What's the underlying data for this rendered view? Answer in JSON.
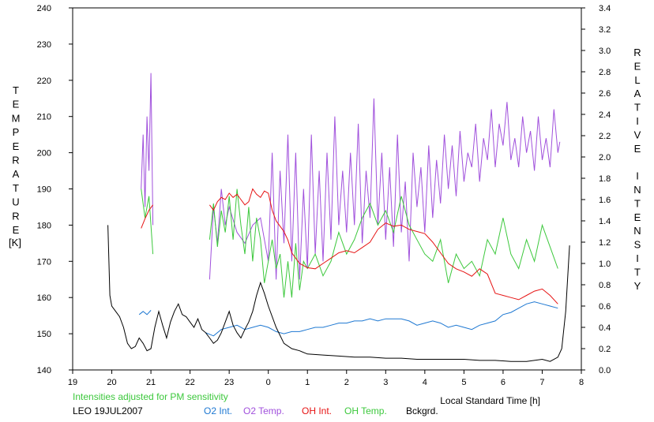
{
  "chart_data": {
    "type": "line",
    "xlabel": "Local Standard Time [h]",
    "ylabel_left": "TEMPERATURE",
    "ylabel_left_unit": "[K]",
    "ylabel_right": "RELATIVE INTENSITY",
    "note": "Intensities adjusted for PM sensitivity",
    "station_date": "LEO 19JUL2007",
    "x_ticks": [
      "19",
      "20",
      "21",
      "22",
      "23",
      "0",
      "1",
      "2",
      "3",
      "4",
      "5",
      "6",
      "7",
      "8"
    ],
    "y_left_ticks": [
      "140",
      "150",
      "160",
      "170",
      "180",
      "190",
      "200",
      "210",
      "220",
      "230",
      "240"
    ],
    "y_right_ticks": [
      "0.0",
      "0.2",
      "0.4",
      "0.6",
      "0.8",
      "1.0",
      "1.2",
      "1.4",
      "1.6",
      "1.8",
      "2.0",
      "2.2",
      "2.4",
      "2.6",
      "2.8",
      "3.0",
      "3.2",
      "3.4"
    ],
    "xlim": [
      19,
      32
    ],
    "ylim_left": [
      140,
      240
    ],
    "ylim_right": [
      0,
      3.4
    ],
    "colors": {
      "o2_int": "#1e78d2",
      "o2_temp": "#a050dc",
      "oh_int": "#e61414",
      "oh_temp": "#3cc83c",
      "bckgrd": "#000000",
      "note": "#3cc83c"
    },
    "series": [
      {
        "name": "O2 Int.",
        "axis": "right",
        "x": [
          20.7,
          20.8,
          20.9,
          21.0,
          22.4,
          22.6,
          22.8,
          23.0,
          23.2,
          23.4,
          23.6,
          23.8,
          24.0,
          24.2,
          24.4,
          24.6,
          24.8,
          25.0,
          25.2,
          25.4,
          25.6,
          25.8,
          26.0,
          26.2,
          26.4,
          26.6,
          26.8,
          27.0,
          27.2,
          27.4,
          27.6,
          27.8,
          28.0,
          28.2,
          28.4,
          28.6,
          28.8,
          29.0,
          29.2,
          29.4,
          29.6,
          29.8,
          30.0,
          30.2,
          30.4,
          30.6,
          30.8,
          31.0,
          31.2,
          31.4
        ],
        "y": [
          0.52,
          0.55,
          0.52,
          0.56,
          0.35,
          0.32,
          0.38,
          0.4,
          0.42,
          0.38,
          0.4,
          0.42,
          0.4,
          0.36,
          0.34,
          0.36,
          0.36,
          0.38,
          0.4,
          0.4,
          0.42,
          0.44,
          0.44,
          0.46,
          0.46,
          0.48,
          0.46,
          0.48,
          0.48,
          0.48,
          0.46,
          0.42,
          0.44,
          0.46,
          0.44,
          0.4,
          0.42,
          0.4,
          0.38,
          0.42,
          0.44,
          0.46,
          0.52,
          0.54,
          0.58,
          0.62,
          0.64,
          0.62,
          0.6,
          0.58
        ]
      },
      {
        "name": "O2 Temp.",
        "axis": "left",
        "x": [
          20.75,
          20.8,
          20.85,
          20.9,
          20.95,
          21.0,
          21.05,
          22.5,
          22.6,
          22.7,
          22.8,
          22.9,
          23.0,
          23.2,
          23.4,
          23.6,
          23.8,
          24.0,
          24.1,
          24.2,
          24.3,
          24.4,
          24.5,
          24.6,
          24.7,
          24.8,
          24.9,
          25.0,
          25.1,
          25.2,
          25.3,
          25.4,
          25.5,
          25.6,
          25.7,
          25.8,
          25.9,
          26.0,
          26.1,
          26.2,
          26.3,
          26.4,
          26.5,
          26.6,
          26.7,
          26.8,
          26.9,
          27.0,
          27.1,
          27.2,
          27.3,
          27.4,
          27.5,
          27.6,
          27.7,
          27.8,
          27.9,
          28.0,
          28.1,
          28.2,
          28.3,
          28.4,
          28.5,
          28.6,
          28.7,
          28.8,
          28.9,
          29.0,
          29.1,
          29.2,
          29.3,
          29.4,
          29.5,
          29.6,
          29.7,
          29.8,
          29.9,
          30.0,
          30.1,
          30.2,
          30.3,
          30.4,
          30.5,
          30.6,
          30.7,
          30.8,
          30.9,
          31.0,
          31.1,
          31.2,
          31.3,
          31.4,
          31.45
        ],
        "y": [
          190,
          205,
          185,
          210,
          195,
          222,
          180,
          165,
          185,
          175,
          190,
          180,
          185,
          178,
          175,
          180,
          182,
          170,
          200,
          165,
          195,
          175,
          205,
          170,
          200,
          165,
          190,
          168,
          205,
          172,
          195,
          170,
          200,
          176,
          210,
          180,
          195,
          178,
          200,
          180,
          208,
          175,
          195,
          182,
          215,
          180,
          200,
          176,
          196,
          174,
          205,
          178,
          192,
          170,
          200,
          185,
          196,
          178,
          202,
          182,
          198,
          186,
          205,
          190,
          202,
          188,
          206,
          192,
          200,
          196,
          208,
          192,
          204,
          198,
          212,
          196,
          208,
          202,
          214,
          198,
          204,
          196,
          210,
          200,
          206,
          195,
          210,
          198,
          204,
          196,
          212,
          200,
          203
        ]
      },
      {
        "name": "OH Int.",
        "axis": "right",
        "x": [
          20.75,
          20.85,
          20.95,
          21.05,
          22.5,
          22.6,
          22.7,
          22.8,
          22.9,
          23.0,
          23.1,
          23.2,
          23.3,
          23.4,
          23.5,
          23.6,
          23.7,
          23.8,
          23.9,
          24.0,
          24.1,
          24.2,
          24.3,
          24.4,
          24.5,
          24.6,
          24.7,
          24.8,
          24.9,
          25.0,
          25.2,
          25.4,
          25.6,
          25.8,
          26.0,
          26.2,
          26.4,
          26.6,
          26.8,
          27.0,
          27.2,
          27.4,
          27.6,
          27.8,
          28.0,
          28.2,
          28.4,
          28.6,
          28.8,
          29.0,
          29.2,
          29.4,
          29.6,
          29.8,
          30.0,
          30.2,
          30.4,
          30.6,
          30.8,
          31.0,
          31.2,
          31.4
        ],
        "y": [
          1.33,
          1.42,
          1.5,
          1.55,
          1.55,
          1.5,
          1.58,
          1.62,
          1.6,
          1.66,
          1.62,
          1.65,
          1.6,
          1.55,
          1.58,
          1.7,
          1.65,
          1.62,
          1.68,
          1.66,
          1.5,
          1.4,
          1.35,
          1.3,
          1.22,
          1.1,
          1.05,
          1.0,
          0.98,
          0.96,
          0.95,
          1.0,
          1.05,
          1.1,
          1.12,
          1.1,
          1.15,
          1.2,
          1.32,
          1.38,
          1.35,
          1.36,
          1.32,
          1.3,
          1.28,
          1.2,
          1.1,
          1.0,
          0.95,
          0.92,
          0.88,
          0.95,
          0.9,
          0.72,
          0.7,
          0.68,
          0.66,
          0.7,
          0.74,
          0.76,
          0.7,
          0.62
        ]
      },
      {
        "name": "OH Temp.",
        "axis": "left",
        "x": [
          20.75,
          20.85,
          20.95,
          21.05,
          22.5,
          22.6,
          22.7,
          22.8,
          22.9,
          23.0,
          23.1,
          23.2,
          23.3,
          23.4,
          23.5,
          23.6,
          23.7,
          23.8,
          23.9,
          24.0,
          24.1,
          24.2,
          24.3,
          24.4,
          24.5,
          24.6,
          24.7,
          24.8,
          24.9,
          25.0,
          25.2,
          25.4,
          25.6,
          25.8,
          26.0,
          26.2,
          26.4,
          26.6,
          26.8,
          27.0,
          27.2,
          27.4,
          27.6,
          27.8,
          28.0,
          28.2,
          28.4,
          28.6,
          28.8,
          29.0,
          29.2,
          29.4,
          29.6,
          29.8,
          30.0,
          30.2,
          30.4,
          30.6,
          30.8,
          31.0,
          31.2,
          31.4
        ],
        "y": [
          190,
          182,
          188,
          172,
          176,
          186,
          174,
          184,
          178,
          188,
          176,
          190,
          180,
          172,
          185,
          170,
          182,
          176,
          164,
          170,
          176,
          168,
          172,
          160,
          170,
          160,
          175,
          162,
          170,
          168,
          172,
          166,
          170,
          178,
          172,
          176,
          182,
          186,
          180,
          184,
          178,
          188,
          180,
          176,
          172,
          170,
          176,
          164,
          172,
          168,
          170,
          166,
          176,
          172,
          182,
          172,
          168,
          176,
          170,
          180,
          174,
          168
        ]
      },
      {
        "name": "Bckgrd.",
        "axis": "right",
        "x": [
          19.9,
          19.95,
          20.0,
          20.1,
          20.2,
          20.3,
          20.4,
          20.5,
          20.6,
          20.7,
          20.8,
          20.9,
          21.0,
          21.1,
          21.2,
          21.3,
          21.4,
          21.5,
          21.6,
          21.7,
          21.8,
          21.9,
          22.0,
          22.1,
          22.2,
          22.3,
          22.4,
          22.5,
          22.6,
          22.7,
          22.8,
          22.9,
          23.0,
          23.1,
          23.2,
          23.3,
          23.4,
          23.5,
          23.6,
          23.7,
          23.8,
          23.9,
          24.0,
          24.2,
          24.4,
          24.6,
          24.8,
          25.0,
          25.4,
          25.8,
          26.2,
          26.6,
          27.0,
          27.4,
          27.8,
          28.2,
          28.6,
          29.0,
          29.4,
          29.8,
          30.2,
          30.6,
          31.0,
          31.2,
          31.4,
          31.5,
          31.6,
          31.7
        ],
        "y": [
          1.36,
          0.7,
          0.6,
          0.55,
          0.5,
          0.4,
          0.25,
          0.2,
          0.22,
          0.3,
          0.25,
          0.18,
          0.2,
          0.4,
          0.55,
          0.42,
          0.3,
          0.45,
          0.55,
          0.62,
          0.52,
          0.5,
          0.45,
          0.4,
          0.48,
          0.38,
          0.35,
          0.3,
          0.25,
          0.28,
          0.35,
          0.45,
          0.55,
          0.42,
          0.35,
          0.3,
          0.38,
          0.45,
          0.55,
          0.7,
          0.82,
          0.72,
          0.6,
          0.4,
          0.25,
          0.2,
          0.18,
          0.15,
          0.14,
          0.13,
          0.12,
          0.12,
          0.11,
          0.11,
          0.1,
          0.1,
          0.1,
          0.1,
          0.09,
          0.09,
          0.08,
          0.08,
          0.1,
          0.08,
          0.12,
          0.2,
          0.55,
          1.17
        ]
      }
    ]
  }
}
